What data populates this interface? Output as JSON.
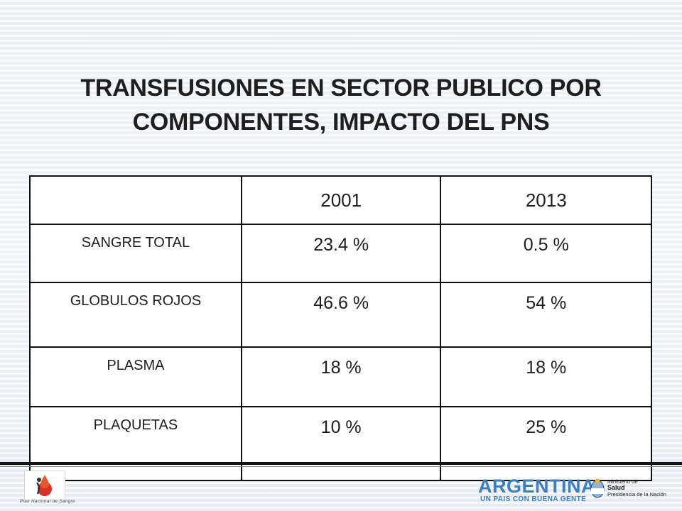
{
  "title_line1": "TRANSFUSIONES EN SECTOR PUBLICO POR",
  "title_line2": "COMPONENTES, IMPACTO DEL PNS",
  "table": {
    "header": [
      "",
      "2001",
      "2013"
    ],
    "rows": [
      {
        "label": "SANGRE TOTAL",
        "v2001": "23.4 %",
        "v2013": "0.5 %"
      },
      {
        "label": "GLOBULOS ROJOS",
        "v2001": "46.6 %",
        "v2013": "54 %"
      },
      {
        "label": "PLASMA",
        "v2001": "18 %",
        "v2013": "18 %"
      },
      {
        "label": "PLAQUETAS",
        "v2001": "10 %",
        "v2013": "25 %"
      }
    ]
  },
  "footer": {
    "pns_caption": "Plan Nacional de Sangre",
    "argentina": "ARGENTINA",
    "argentina_sub": "UN PAIS CON BUENA GENTE",
    "ministerio_line1": "Ministerio de",
    "ministerio_line2": "Salud",
    "ministerio_line3": "Presidencia de la Nación"
  },
  "colors": {
    "argentina_blue": "#3b7fc0",
    "pns_red": "#d9302b"
  }
}
